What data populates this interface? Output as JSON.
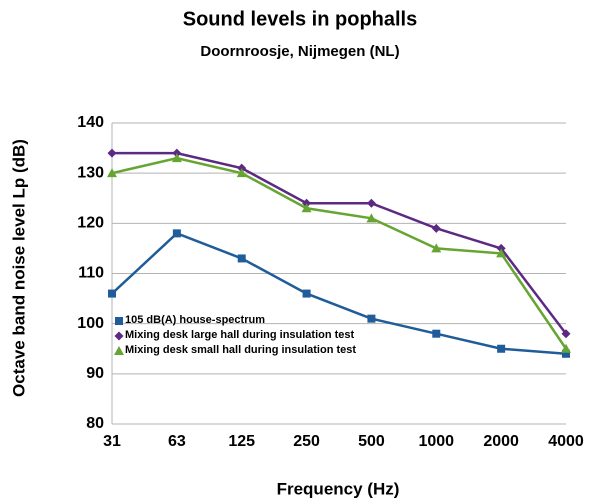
{
  "chart_data": {
    "type": "line",
    "title": "Sound levels in pophalls",
    "subtitle": "Doornroosje, Nijmegen (NL)",
    "x_label": "Frequency (Hz)",
    "y_label": "Octave band noise level  Lp (dB)",
    "categories": [
      "31",
      "63",
      "125",
      "250",
      "500",
      "1000",
      "2000",
      "4000"
    ],
    "series": [
      {
        "name": "105 dB(A) house-spectrum",
        "color": "#1f5c99",
        "marker": "square",
        "values": [
          106,
          118,
          113,
          106,
          101,
          98,
          95,
          94
        ]
      },
      {
        "name": "Mixing desk large hall during insulation test",
        "color": "#5c2a82",
        "marker": "diamond",
        "values": [
          134,
          134,
          131,
          124,
          124,
          119,
          115,
          98
        ]
      },
      {
        "name": "Mixing desk small hall during insulation test",
        "color": "#66a532",
        "marker": "triangle",
        "values": [
          130,
          133,
          130,
          123,
          121,
          115,
          114,
          95
        ]
      }
    ],
    "ylim": [
      80,
      140
    ],
    "yticks": [
      80,
      90,
      100,
      110,
      120,
      130,
      140
    ],
    "grid": true,
    "legend": "lower left"
  }
}
